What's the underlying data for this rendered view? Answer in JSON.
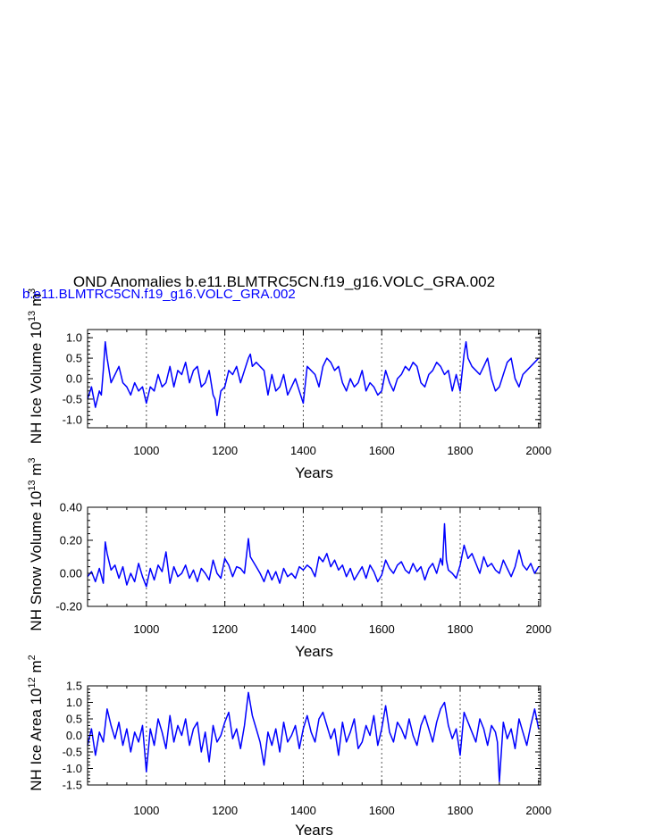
{
  "title": "OND Anomalies b.e11.BLMTRC5CN.f19_g16.VOLC_GRA.002",
  "subtitle": "b.e11.BLMTRC5CN.f19_g16.VOLC_GRA.002",
  "colors": {
    "line": "#0000ff",
    "subtitle": "#0000ff",
    "axis": "#000000",
    "grid": "#555555"
  },
  "chart_data": [
    {
      "type": "line",
      "ylabel_main": "NH Ice Volume 10",
      "ylabel_exp1": "13",
      "ylabel_unit": " m",
      "ylabel_exp2": "3",
      "xlabel": "Years",
      "xlim": [
        850,
        2005
      ],
      "ylim": [
        -1.2,
        1.2
      ],
      "x_ticks": [
        "1000",
        "1200",
        "1400",
        "1600",
        "1800",
        "2000"
      ],
      "y_ticks": [
        "1.0",
        "0.5",
        "0.0",
        "-0.5",
        "-1.0"
      ],
      "grid_x": [
        1000,
        1200,
        1400,
        1600,
        1800
      ],
      "series": [
        {
          "x": [
            850,
            860,
            870,
            880,
            885,
            890,
            895,
            900,
            910,
            920,
            930,
            940,
            950,
            960,
            970,
            980,
            990,
            1000,
            1010,
            1020,
            1030,
            1040,
            1050,
            1060,
            1070,
            1080,
            1090,
            1100,
            1110,
            1120,
            1130,
            1140,
            1150,
            1160,
            1170,
            1175,
            1180,
            1190,
            1200,
            1210,
            1220,
            1230,
            1240,
            1250,
            1260,
            1265,
            1270,
            1280,
            1290,
            1300,
            1310,
            1320,
            1330,
            1340,
            1350,
            1360,
            1370,
            1380,
            1390,
            1400,
            1410,
            1420,
            1430,
            1440,
            1450,
            1460,
            1470,
            1480,
            1490,
            1500,
            1510,
            1520,
            1530,
            1540,
            1550,
            1560,
            1570,
            1580,
            1590,
            1600,
            1610,
            1620,
            1630,
            1640,
            1650,
            1660,
            1670,
            1680,
            1690,
            1700,
            1710,
            1720,
            1730,
            1740,
            1750,
            1760,
            1770,
            1780,
            1790,
            1800,
            1810,
            1815,
            1820,
            1830,
            1840,
            1850,
            1860,
            1870,
            1880,
            1890,
            1900,
            1910,
            1920,
            1930,
            1940,
            1950,
            1960,
            1970,
            1980,
            1990,
            2000
          ],
          "y": [
            -0.5,
            -0.2,
            -0.7,
            -0.3,
            -0.4,
            0.2,
            0.9,
            0.5,
            -0.1,
            0.1,
            0.3,
            -0.1,
            -0.2,
            -0.4,
            -0.1,
            -0.3,
            -0.2,
            -0.6,
            -0.2,
            -0.3,
            0.1,
            -0.2,
            -0.1,
            0.3,
            -0.2,
            0.2,
            0.1,
            0.4,
            -0.1,
            0.2,
            0.3,
            -0.2,
            -0.1,
            0.2,
            -0.4,
            -0.5,
            -0.9,
            -0.3,
            -0.2,
            0.2,
            0.1,
            0.3,
            -0.1,
            0.2,
            0.5,
            0.6,
            0.3,
            0.4,
            0.3,
            0.2,
            -0.4,
            0.1,
            -0.3,
            -0.2,
            0.1,
            -0.4,
            -0.2,
            0.0,
            -0.3,
            -0.6,
            0.3,
            0.2,
            0.1,
            -0.2,
            0.3,
            0.5,
            0.4,
            0.2,
            0.3,
            -0.1,
            -0.3,
            0.0,
            -0.2,
            -0.1,
            0.2,
            -0.3,
            -0.1,
            -0.2,
            -0.4,
            -0.3,
            0.2,
            -0.1,
            -0.3,
            0.0,
            0.1,
            0.3,
            0.2,
            0.4,
            0.3,
            -0.1,
            -0.2,
            0.1,
            0.2,
            0.4,
            0.3,
            0.1,
            0.2,
            -0.3,
            0.1,
            -0.3,
            0.6,
            0.9,
            0.5,
            0.3,
            0.2,
            0.1,
            0.3,
            0.5,
            0.0,
            -0.3,
            -0.2,
            0.1,
            0.4,
            0.5,
            0.0,
            -0.2,
            0.1,
            0.2,
            0.3,
            0.4,
            0.5
          ]
        }
      ]
    },
    {
      "type": "line",
      "ylabel_main": "NH Snow Volume 10",
      "ylabel_exp1": "13",
      "ylabel_unit": " m",
      "ylabel_exp2": "3",
      "xlabel": "Years",
      "xlim": [
        850,
        2005
      ],
      "ylim": [
        -0.2,
        0.4
      ],
      "x_ticks": [
        "1000",
        "1200",
        "1400",
        "1600",
        "1800",
        "2000"
      ],
      "y_ticks": [
        "0.40",
        "0.20",
        "0.00",
        "-0.20"
      ],
      "grid_x": [
        1000,
        1200,
        1400,
        1600,
        1800
      ],
      "series": [
        {
          "x": [
            850,
            860,
            870,
            880,
            890,
            895,
            900,
            910,
            920,
            930,
            940,
            950,
            960,
            970,
            980,
            990,
            1000,
            1010,
            1020,
            1030,
            1040,
            1050,
            1060,
            1070,
            1080,
            1090,
            1100,
            1110,
            1120,
            1130,
            1140,
            1150,
            1160,
            1170,
            1180,
            1190,
            1200,
            1210,
            1220,
            1230,
            1240,
            1250,
            1260,
            1265,
            1270,
            1280,
            1290,
            1300,
            1310,
            1320,
            1330,
            1340,
            1350,
            1360,
            1370,
            1380,
            1390,
            1400,
            1410,
            1420,
            1430,
            1440,
            1450,
            1460,
            1470,
            1480,
            1490,
            1500,
            1510,
            1520,
            1530,
            1540,
            1550,
            1560,
            1570,
            1580,
            1590,
            1600,
            1610,
            1620,
            1630,
            1640,
            1650,
            1660,
            1670,
            1680,
            1690,
            1700,
            1710,
            1720,
            1730,
            1740,
            1750,
            1755,
            1760,
            1765,
            1770,
            1780,
            1790,
            1800,
            1810,
            1820,
            1830,
            1840,
            1850,
            1860,
            1870,
            1880,
            1890,
            1900,
            1910,
            1920,
            1930,
            1940,
            1950,
            1960,
            1970,
            1980,
            1990,
            2000
          ],
          "y": [
            -0.02,
            0.01,
            -0.05,
            0.03,
            -0.06,
            0.19,
            0.12,
            0.02,
            0.05,
            -0.03,
            0.04,
            -0.07,
            0.0,
            -0.05,
            0.06,
            -0.02,
            -0.08,
            0.03,
            -0.04,
            0.05,
            0.01,
            0.13,
            -0.06,
            0.04,
            -0.02,
            0.0,
            0.05,
            -0.03,
            0.02,
            -0.05,
            0.03,
            0.0,
            -0.04,
            0.08,
            0.0,
            -0.03,
            0.09,
            0.05,
            -0.02,
            0.04,
            0.03,
            0.0,
            0.21,
            0.1,
            0.08,
            0.04,
            0.0,
            -0.05,
            0.02,
            -0.04,
            0.01,
            -0.06,
            0.03,
            -0.02,
            0.0,
            -0.03,
            0.04,
            0.02,
            0.05,
            0.03,
            -0.02,
            0.1,
            0.07,
            0.12,
            0.04,
            0.08,
            0.02,
            0.05,
            -0.02,
            0.03,
            -0.04,
            0.0,
            0.04,
            -0.03,
            0.05,
            0.01,
            -0.05,
            -0.01,
            0.08,
            0.03,
            0.0,
            0.05,
            0.07,
            0.02,
            0.0,
            0.06,
            0.01,
            0.04,
            -0.04,
            0.03,
            0.06,
            0.0,
            0.09,
            0.05,
            0.3,
            0.08,
            0.02,
            0.0,
            -0.03,
            0.05,
            0.17,
            0.09,
            0.12,
            0.06,
            0.0,
            0.1,
            0.04,
            0.06,
            0.02,
            0.0,
            0.08,
            0.03,
            -0.02,
            0.04,
            0.14,
            0.05,
            0.02,
            0.06,
            0.0,
            0.04
          ]
        }
      ]
    },
    {
      "type": "line",
      "ylabel_main": "NH Ice Area 10",
      "ylabel_exp1": "12",
      "ylabel_unit": " m",
      "ylabel_exp2": "2",
      "xlabel": "Years",
      "xlim": [
        850,
        2005
      ],
      "ylim": [
        -1.5,
        1.5
      ],
      "x_ticks": [
        "1000",
        "1200",
        "1400",
        "1600",
        "1800",
        "2000"
      ],
      "y_ticks": [
        "1.5",
        "1.0",
        "0.5",
        "0.0",
        "-0.5",
        "-1.0",
        "-1.5"
      ],
      "grid_x": [
        1000,
        1200,
        1400,
        1600,
        1800
      ],
      "series": [
        {
          "x": [
            850,
            860,
            870,
            880,
            890,
            900,
            910,
            920,
            930,
            940,
            950,
            960,
            970,
            980,
            990,
            1000,
            1010,
            1020,
            1030,
            1040,
            1050,
            1060,
            1070,
            1080,
            1090,
            1100,
            1110,
            1120,
            1130,
            1140,
            1150,
            1160,
            1170,
            1180,
            1190,
            1200,
            1210,
            1220,
            1230,
            1240,
            1250,
            1260,
            1270,
            1280,
            1290,
            1300,
            1310,
            1320,
            1330,
            1340,
            1350,
            1360,
            1370,
            1380,
            1390,
            1400,
            1410,
            1420,
            1430,
            1440,
            1450,
            1460,
            1470,
            1480,
            1490,
            1500,
            1510,
            1520,
            1530,
            1540,
            1550,
            1560,
            1570,
            1580,
            1590,
            1600,
            1610,
            1620,
            1630,
            1640,
            1650,
            1660,
            1670,
            1680,
            1690,
            1700,
            1710,
            1720,
            1730,
            1740,
            1750,
            1760,
            1770,
            1780,
            1790,
            1800,
            1810,
            1820,
            1830,
            1840,
            1850,
            1860,
            1870,
            1880,
            1890,
            1895,
            1900,
            1910,
            1920,
            1930,
            1940,
            1950,
            1960,
            1970,
            1980,
            1990,
            2000
          ],
          "y": [
            -0.3,
            0.2,
            -0.6,
            0.1,
            -0.2,
            0.8,
            0.3,
            -0.1,
            0.4,
            -0.3,
            0.2,
            -0.5,
            0.1,
            -0.2,
            0.3,
            -1.1,
            0.2,
            -0.3,
            0.5,
            0.1,
            -0.4,
            0.6,
            -0.2,
            0.3,
            0.0,
            0.5,
            -0.3,
            0.2,
            0.4,
            -0.5,
            0.1,
            -0.8,
            0.3,
            -0.2,
            0.0,
            0.4,
            0.7,
            -0.1,
            0.2,
            -0.4,
            0.3,
            1.3,
            0.6,
            0.2,
            -0.2,
            -0.9,
            0.1,
            -0.3,
            0.2,
            -0.5,
            0.4,
            -0.2,
            0.0,
            0.3,
            -0.4,
            0.2,
            0.6,
            0.1,
            -0.2,
            0.5,
            0.7,
            0.3,
            -0.1,
            0.2,
            -0.6,
            0.4,
            -0.2,
            0.1,
            0.5,
            -0.4,
            -0.2,
            0.3,
            0.0,
            0.6,
            -0.3,
            0.2,
            0.9,
            0.1,
            -0.2,
            0.4,
            0.2,
            -0.1,
            0.5,
            0.0,
            -0.3,
            0.3,
            0.6,
            0.2,
            -0.2,
            0.4,
            0.8,
            1.0,
            0.3,
            -0.1,
            0.2,
            -0.6,
            0.7,
            0.4,
            0.1,
            -0.2,
            0.5,
            0.2,
            -0.3,
            0.3,
            0.1,
            -0.2,
            -1.4,
            0.4,
            -0.1,
            0.2,
            -0.4,
            0.5,
            0.1,
            -0.3,
            0.3,
            0.8,
            0.2
          ]
        }
      ]
    }
  ]
}
